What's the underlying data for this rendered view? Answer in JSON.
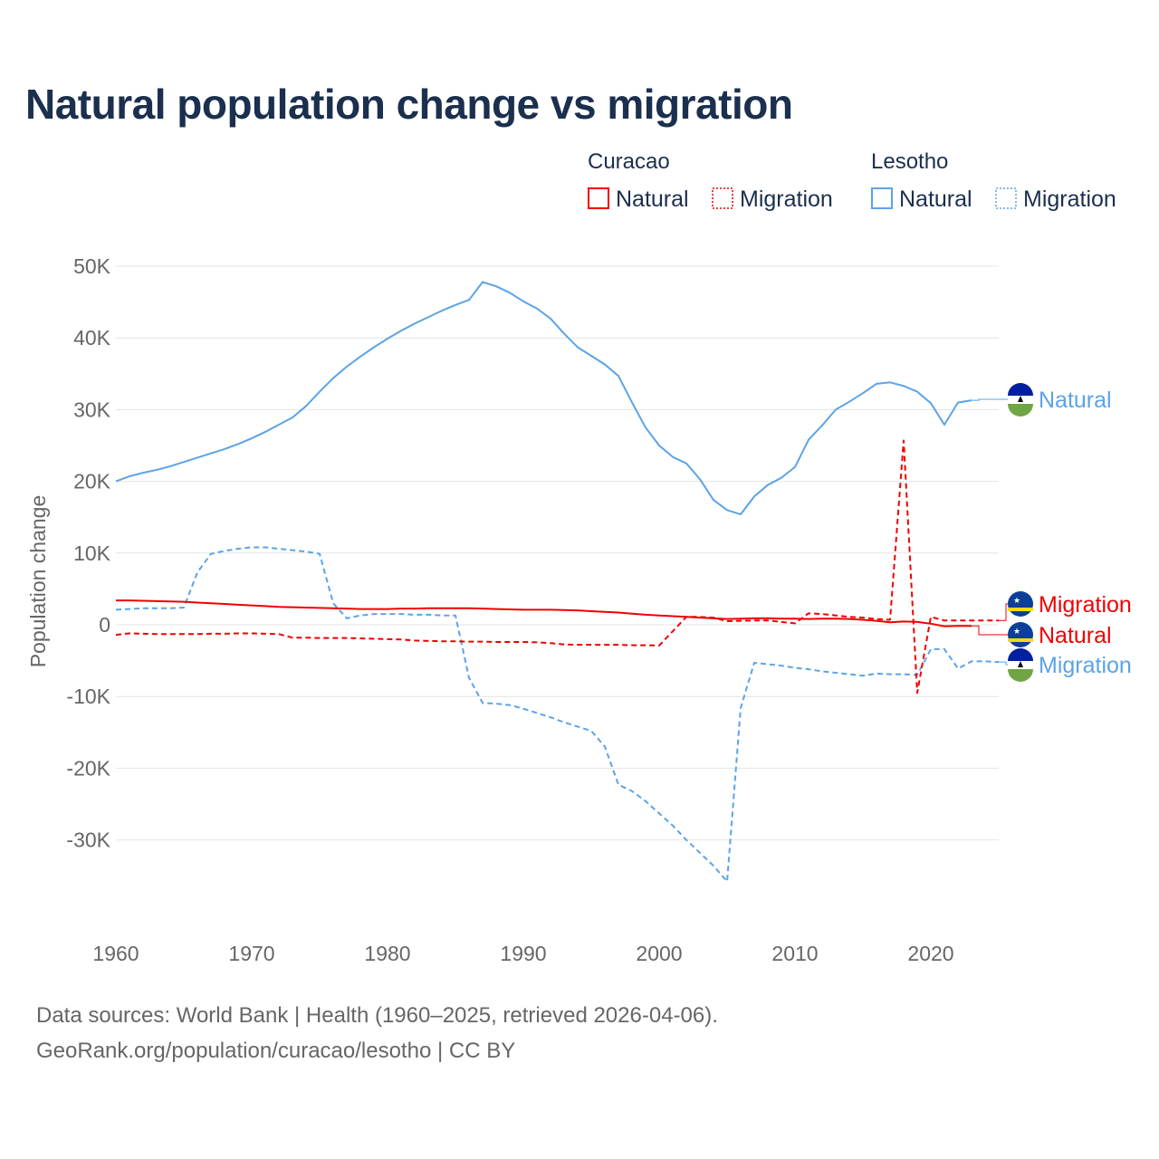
{
  "title": "Natural population change vs migration",
  "footer": {
    "line1": "Data sources: World Bank | Health (1960–2025, retrieved 2026-04-06).",
    "line2": "GeoRank.org/population/curacao/lesotho | CC BY"
  },
  "colors": {
    "curacao": "#f00000",
    "lesotho": "#5ba3e8",
    "title": "#1b2f4e"
  },
  "legend": {
    "groups": [
      {
        "name": "Curacao",
        "items": [
          {
            "label": "Natural",
            "style": "solid"
          },
          {
            "label": "Migration",
            "style": "dotted"
          }
        ]
      },
      {
        "name": "Lesotho",
        "items": [
          {
            "label": "Natural",
            "style": "solid"
          },
          {
            "label": "Migration",
            "style": "dotted"
          }
        ]
      }
    ]
  },
  "end_labels": [
    {
      "text": "Natural",
      "series": "lesotho_natural",
      "flag": "lesotho-flag"
    },
    {
      "text": "Migration",
      "series": "curacao_migration",
      "flag": "curacao-flag"
    },
    {
      "text": "Natural",
      "series": "curacao_natural",
      "flag": "curacao-flag"
    },
    {
      "text": "Migration",
      "series": "lesotho_migration",
      "flag": "lesotho-flag"
    }
  ],
  "chart_data": {
    "type": "line",
    "title": "Natural population change vs migration",
    "xlabel": "",
    "ylabel": "Population change",
    "xlim": [
      1960,
      2025
    ],
    "ylim": [
      -40000,
      50000
    ],
    "yticks": [
      {
        "v": 50000,
        "label": "50K"
      },
      {
        "v": 40000,
        "label": "40K"
      },
      {
        "v": 30000,
        "label": "30K"
      },
      {
        "v": 20000,
        "label": "20K"
      },
      {
        "v": 10000,
        "label": "10K"
      },
      {
        "v": 0,
        "label": "0"
      },
      {
        "v": -10000,
        "label": "-10K"
      },
      {
        "v": -20000,
        "label": "-20K"
      },
      {
        "v": -30000,
        "label": "-30K"
      }
    ],
    "xticks": [
      {
        "v": 1960,
        "label": "1960"
      },
      {
        "v": 1970,
        "label": "1970"
      },
      {
        "v": 1980,
        "label": "1980"
      },
      {
        "v": 1990,
        "label": "1990"
      },
      {
        "v": 2000,
        "label": "2000"
      },
      {
        "v": 2010,
        "label": "2010"
      },
      {
        "v": 2020,
        "label": "2020"
      }
    ],
    "start_year": 1960,
    "series": [
      {
        "id": "lesotho_natural",
        "name": "Lesotho Natural",
        "color": "#5ba3e8",
        "dash": false,
        "values": [
          20000,
          20700,
          21200,
          21600,
          22100,
          22700,
          23300,
          23900,
          24500,
          25200,
          26000,
          26900,
          27900,
          28900,
          30500,
          32500,
          34400,
          36000,
          37400,
          38700,
          39900,
          41000,
          42000,
          42900,
          43800,
          44600,
          45300,
          47800,
          47200,
          46300,
          45100,
          44100,
          42700,
          40600,
          38700,
          37500,
          36300,
          34700,
          31000,
          27500,
          25000,
          23400,
          22500,
          20300,
          17400,
          16000,
          15400,
          17900,
          19500,
          20500,
          22000,
          25800,
          27800,
          30000,
          31100,
          32300,
          33600,
          33800,
          33300,
          32500,
          30900,
          27900,
          31000,
          31300
        ]
      },
      {
        "id": "lesotho_migration",
        "name": "Lesotho Migration",
        "color": "#5ba3e8",
        "dash": true,
        "values": [
          2100,
          2200,
          2300,
          2300,
          2300,
          2400,
          7300,
          9900,
          10300,
          10600,
          10800,
          10800,
          10600,
          10400,
          10200,
          9900,
          3000,
          900,
          1300,
          1500,
          1500,
          1500,
          1400,
          1400,
          1300,
          1300,
          -7400,
          -10900,
          -11000,
          -11200,
          -11700,
          -12300,
          -12900,
          -13600,
          -14200,
          -14800,
          -17000,
          -22300,
          -23200,
          -24600,
          -26300,
          -28000,
          -30000,
          -31800,
          -33600,
          -35800,
          -11600,
          -5300,
          -5500,
          -5700,
          -6000,
          -6200,
          -6500,
          -6700,
          -6900,
          -7100,
          -6800,
          -6900,
          -6900,
          -7000,
          -3400,
          -3400,
          -6100,
          -5100,
          -5100,
          -5200
        ]
      },
      {
        "id": "curacao_natural",
        "name": "Curacao Natural",
        "color": "#f00000",
        "dash": false,
        "values": [
          3400,
          3400,
          3350,
          3300,
          3250,
          3200,
          3100,
          3000,
          2900,
          2800,
          2700,
          2600,
          2500,
          2450,
          2400,
          2350,
          2300,
          2250,
          2200,
          2200,
          2200,
          2250,
          2250,
          2300,
          2300,
          2300,
          2300,
          2250,
          2200,
          2150,
          2100,
          2100,
          2100,
          2050,
          2000,
          1900,
          1800,
          1700,
          1550,
          1400,
          1300,
          1200,
          1100,
          1000,
          900,
          800,
          850,
          900,
          900,
          850,
          850,
          800,
          850,
          850,
          800,
          700,
          550,
          350,
          450,
          400,
          150,
          -200,
          -150,
          -150
        ]
      },
      {
        "id": "curacao_migration",
        "name": "Curacao Migration",
        "color": "#f00000",
        "dash": true,
        "values": [
          -1400,
          -1200,
          -1250,
          -1300,
          -1300,
          -1300,
          -1300,
          -1250,
          -1250,
          -1200,
          -1200,
          -1250,
          -1300,
          -1800,
          -1800,
          -1850,
          -1850,
          -1850,
          -1900,
          -1950,
          -2000,
          -2050,
          -2200,
          -2250,
          -2300,
          -2300,
          -2350,
          -2350,
          -2400,
          -2400,
          -2400,
          -2450,
          -2550,
          -2750,
          -2800,
          -2800,
          -2800,
          -2800,
          -2850,
          -2850,
          -2900,
          -900,
          1100,
          1100,
          1000,
          500,
          550,
          600,
          600,
          400,
          200,
          1600,
          1500,
          1300,
          1100,
          1000,
          800,
          700,
          25700,
          -9500,
          1100,
          600,
          600,
          600,
          600,
          600
        ]
      }
    ]
  }
}
